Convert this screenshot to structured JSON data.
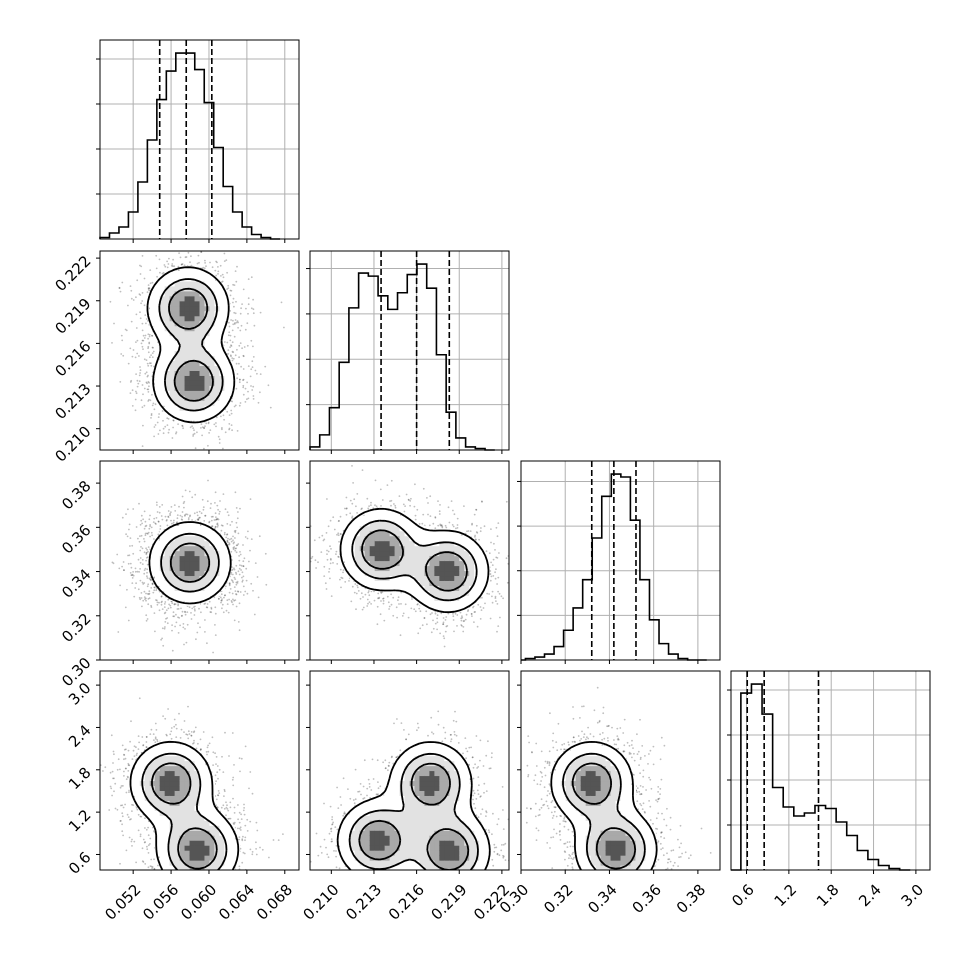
{
  "chart_data": {
    "type": "corner",
    "title": "",
    "grid": true,
    "parameters": [
      {
        "label": "",
        "range": [
          0.0485,
          0.0695
        ],
        "ticks": [
          0.052,
          0.056,
          0.06,
          0.064,
          0.068
        ],
        "tick_labels": [
          "0.052",
          "0.056",
          "0.060",
          "0.064",
          "0.068"
        ],
        "quantiles": [
          0.0548,
          0.0576,
          0.0603
        ]
      },
      {
        "label": "",
        "range": [
          0.2085,
          0.2225
        ],
        "ticks": [
          0.21,
          0.213,
          0.216,
          0.219,
          0.222
        ],
        "tick_labels": [
          "0.210",
          "0.213",
          "0.216",
          "0.219",
          "0.222"
        ],
        "quantiles": [
          0.2135,
          0.216,
          0.2183
        ]
      },
      {
        "label": "",
        "range": [
          0.3,
          0.39
        ],
        "ticks": [
          0.3,
          0.32,
          0.34,
          0.36,
          0.38
        ],
        "tick_labels": [
          "0.30",
          "0.32",
          "0.34",
          "0.36",
          "0.38"
        ],
        "quantiles": [
          0.332,
          0.342,
          0.352
        ]
      },
      {
        "label": "",
        "range": [
          0.38,
          3.2
        ],
        "ticks": [
          0.6,
          1.2,
          1.8,
          2.4,
          3.0
        ],
        "tick_labels": [
          "0.6",
          "1.2",
          "1.8",
          "2.4",
          "3.0"
        ],
        "quantiles": [
          0.61,
          0.85,
          1.62
        ]
      }
    ],
    "histograms": [
      {
        "x_start": 0.0485,
        "x_end": 0.0675,
        "counts": [
          1,
          4,
          8,
          18,
          38,
          66,
          93,
          112,
          124,
          124,
          113,
          91,
          61,
          35,
          18,
          8,
          3,
          1,
          0
        ]
      },
      {
        "x_start": 0.2085,
        "x_end": 0.2215,
        "counts": [
          2,
          10,
          28,
          58,
          94,
          117,
          115,
          102,
          93,
          104,
          116,
          123,
          107,
          63,
          25,
          8,
          2,
          1,
          0
        ]
      },
      {
        "x_start": 0.302,
        "x_end": 0.384,
        "counts": [
          1,
          2,
          4,
          9,
          20,
          35,
          54,
          82,
          110,
          125,
          123,
          94,
          54,
          27,
          11,
          4,
          1,
          0,
          0
        ]
      },
      {
        "x_start": 0.52,
        "x_end": 2.92,
        "counts": [
          118,
          124,
          104,
          55,
          42,
          36,
          38,
          43,
          41,
          32,
          23,
          13,
          7,
          3,
          1,
          0
        ]
      }
    ],
    "pairs": [
      {
        "x": 0,
        "y": 1,
        "modes": [
          {
            "x": 0.0578,
            "y": 0.2185
          },
          {
            "x": 0.0584,
            "y": 0.2133
          }
        ]
      },
      {
        "x": 0,
        "y": 2,
        "modes": [
          {
            "x": 0.058,
            "y": 0.344
          }
        ]
      },
      {
        "x": 1,
        "y": 2,
        "modes": [
          {
            "x": 0.2135,
            "y": 0.35
          },
          {
            "x": 0.2182,
            "y": 0.34
          }
        ]
      },
      {
        "x": 0,
        "y": 3,
        "modes": [
          {
            "x": 0.056,
            "y": 1.62
          },
          {
            "x": 0.0588,
            "y": 0.67
          }
        ]
      },
      {
        "x": 1,
        "y": 3,
        "modes": [
          {
            "x": 0.2133,
            "y": 0.8
          },
          {
            "x": 0.217,
            "y": 1.62
          },
          {
            "x": 0.2183,
            "y": 0.65
          }
        ]
      },
      {
        "x": 2,
        "y": 3,
        "modes": [
          {
            "x": 0.332,
            "y": 1.62
          },
          {
            "x": 0.343,
            "y": 0.67
          }
        ]
      }
    ]
  }
}
